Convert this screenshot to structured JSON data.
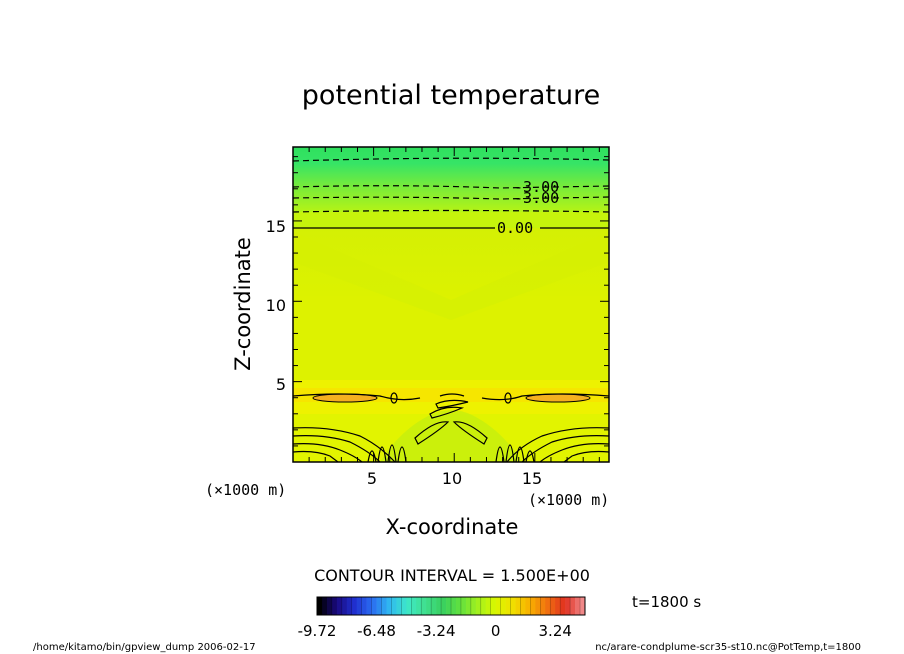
{
  "chart_data": {
    "type": "heatmap",
    "title": "potential temperature",
    "xlabel": "X-coordinate",
    "ylabel": "Z-coordinate",
    "x_unit": "(×1000 m)",
    "z_unit": "(×1000 m)",
    "xlim": [
      0,
      19.6
    ],
    "ylim": [
      0,
      19.6
    ],
    "x_ticks": [
      "5",
      "10",
      "15"
    ],
    "y_ticks": [
      "5",
      "10",
      "15"
    ],
    "contour_interval": "CONTOUR INTERVAL = 1.500E+00",
    "contour_labels": [
      "-3.00",
      "-3.00",
      "0.00"
    ],
    "time_label": "t=1800 s",
    "colorbar": {
      "ticks": [
        "-9.72",
        "-6.48",
        "-3.24",
        "0",
        "3.24"
      ],
      "range": [
        -9.72,
        4.86
      ],
      "colors": [
        "#000000",
        "#1a0a80",
        "#2030d0",
        "#2a6cf0",
        "#30b8f0",
        "#3ee8c8",
        "#40e090",
        "#38d060",
        "#60e040",
        "#a0f020",
        "#d8f800",
        "#f0e000",
        "#f8b000",
        "#f07010",
        "#e03020",
        "#f08888"
      ]
    },
    "field_colors": {
      "background": "#ddf200",
      "upper_green": "#33e46a",
      "upper_band": "#9ef02c",
      "lower_orange": "#f8c020",
      "lower_yellow": "#f2f000"
    },
    "footer_left": "/home/kitamo/bin/gpview_dump   2006-02-17",
    "footer_right": "nc/arare-condplume-scr35-st10.nc@PotTemp,t=1800"
  }
}
